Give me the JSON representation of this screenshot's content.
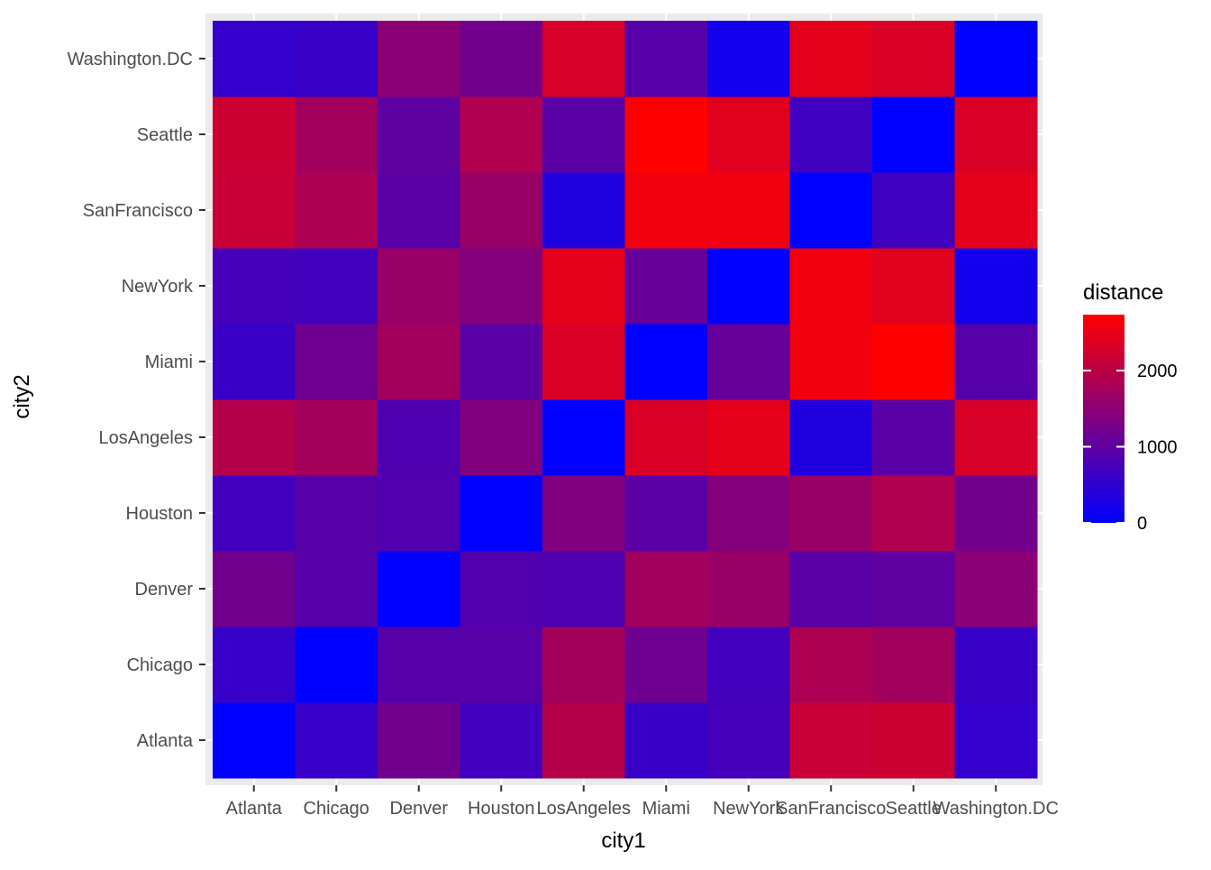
{
  "chart_data": {
    "type": "heatmap",
    "title": "",
    "xlabel": "city1",
    "ylabel": "city2",
    "x_categories": [
      "Atlanta",
      "Chicago",
      "Denver",
      "Houston",
      "LosAngeles",
      "Miami",
      "NewYork",
      "SanFrancisco",
      "Seattle",
      "Washington.DC"
    ],
    "y_categories": [
      "Atlanta",
      "Chicago",
      "Denver",
      "Houston",
      "LosAngeles",
      "Miami",
      "NewYork",
      "SanFrancisco",
      "Seattle",
      "Washington.DC"
    ],
    "values": [
      [
        0,
        587,
        1212,
        701,
        1936,
        604,
        748,
        2139,
        2182,
        543
      ],
      [
        587,
        0,
        920,
        940,
        1745,
        1188,
        713,
        1858,
        1737,
        597
      ],
      [
        1212,
        920,
        0,
        879,
        831,
        1726,
        1631,
        949,
        1021,
        1494
      ],
      [
        701,
        940,
        879,
        0,
        1374,
        968,
        1420,
        1645,
        1891,
        1220
      ],
      [
        1936,
        1745,
        831,
        1374,
        0,
        2339,
        2451,
        347,
        959,
        2300
      ],
      [
        604,
        1188,
        1726,
        968,
        2339,
        0,
        1092,
        2594,
        2734,
        923
      ],
      [
        748,
        713,
        1631,
        1420,
        2451,
        1092,
        0,
        2571,
        2408,
        205
      ],
      [
        2139,
        1858,
        949,
        1645,
        347,
        2594,
        2571,
        0,
        678,
        2442
      ],
      [
        2182,
        1737,
        1021,
        1891,
        959,
        2734,
        2408,
        678,
        0,
        2329
      ],
      [
        543,
        597,
        1494,
        1220,
        2300,
        923,
        205,
        2442,
        2329,
        0
      ]
    ],
    "value_note": "values[i][j] = distance between x_categories[j] (city1) and y_categories[i] (city2)",
    "color_scale": {
      "low_color": "#0000ff",
      "high_color": "#ff0000",
      "min": 0,
      "max": 2734
    },
    "legend": {
      "title": "distance",
      "breaks": [
        0,
        1000,
        2000
      ],
      "break_labels": [
        "0",
        "1000",
        "2000"
      ],
      "position": "right"
    },
    "grid": true,
    "panel_background": "#ebebeb",
    "grid_color": "#ffffff"
  }
}
